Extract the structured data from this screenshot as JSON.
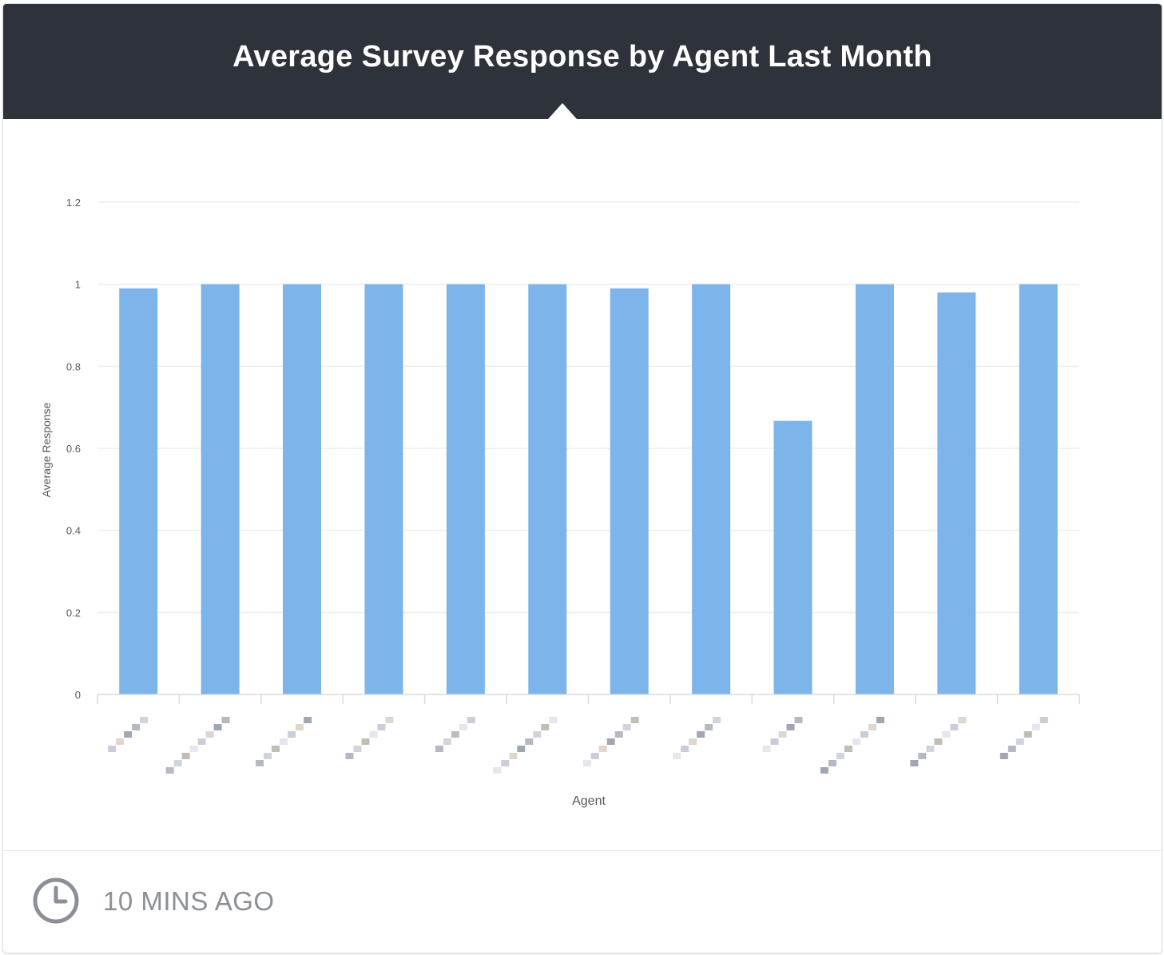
{
  "widget": {
    "title": "Average Survey Response by Agent Last Month",
    "updated": "10 MINS AGO",
    "updated_icon": "clock-icon"
  },
  "colors": {
    "header_bg": "#2e323a",
    "bar": "#7db4ea",
    "grid": "#ebedf0",
    "footer_text": "#8b8f96"
  },
  "chart_data": {
    "type": "bar",
    "categories": [
      "",
      "",
      "",
      "",
      "",
      "",
      "",
      "",
      "",
      "",
      "",
      ""
    ],
    "category_labels_obscured": true,
    "values": [
      0.99,
      1.0,
      1.0,
      1.0,
      1.0,
      1.0,
      0.99,
      1.0,
      0.667,
      1.0,
      0.98,
      1.0
    ],
    "title": "Average Survey Response by Agent Last Month",
    "xlabel": "Agent",
    "ylabel": "Average Response",
    "ylim": [
      0,
      1.2
    ],
    "yticks": [
      "0",
      "0.2",
      "0.4",
      "0.6",
      "0.8",
      "1",
      "1.2"
    ],
    "grid": true,
    "legend": "none"
  }
}
